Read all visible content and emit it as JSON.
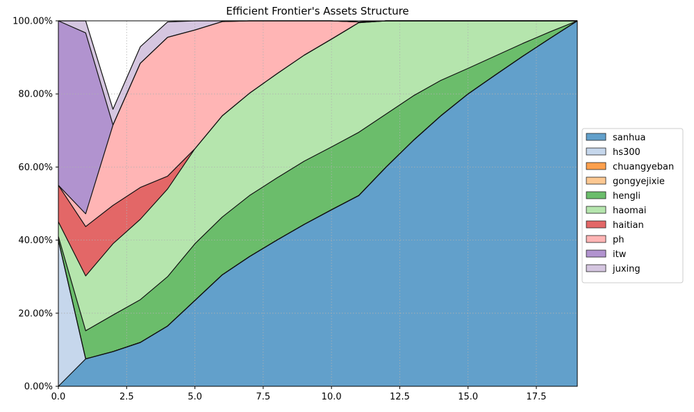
{
  "chart_data": {
    "type": "area",
    "title": "Efficient Frontier's Assets Structure",
    "xlabel": "",
    "ylabel": "",
    "xlim": [
      0,
      19
    ],
    "ylim": [
      0,
      1
    ],
    "x_ticks": [
      0,
      2.5,
      5,
      7.5,
      10,
      12.5,
      15,
      17.5
    ],
    "x_tick_labels": [
      "0.0",
      "2.5",
      "5.0",
      "7.5",
      "10.0",
      "12.5",
      "15.0",
      "17.5"
    ],
    "y_ticks": [
      0,
      0.2,
      0.4,
      0.6,
      0.8,
      1.0
    ],
    "y_tick_labels": [
      "0.00%",
      "20.00%",
      "40.00%",
      "60.00%",
      "80.00%",
      "100.00%"
    ],
    "grid": true,
    "legend_position": "right",
    "x": [
      0,
      1,
      2,
      3,
      4,
      5,
      6,
      7,
      8,
      9,
      10,
      11,
      12,
      13,
      14,
      15,
      16,
      17,
      18,
      19
    ],
    "series": [
      {
        "name": "sanhua",
        "color": "#62a0cb",
        "values": [
          0.0,
          0.075,
          0.095,
          0.12,
          0.165,
          0.235,
          0.305,
          0.355,
          0.4,
          0.443,
          0.483,
          0.522,
          0.6,
          0.673,
          0.74,
          0.8,
          0.852,
          0.903,
          0.952,
          1.0
        ]
      },
      {
        "name": "hs300",
        "color": "#c6d7ec",
        "values": [
          0.4,
          0.0,
          0.0,
          0.0,
          0.0,
          0.0,
          0.0,
          0.0,
          0.0,
          0.0,
          0.0,
          0.0,
          0.0,
          0.0,
          0.0,
          0.0,
          0.0,
          0.0,
          0.0,
          0.0
        ]
      },
      {
        "name": "chuangyeban",
        "color": "#fda04d",
        "values": [
          0,
          0,
          0,
          0,
          0,
          0,
          0,
          0,
          0,
          0,
          0,
          0,
          0,
          0,
          0,
          0,
          0,
          0,
          0,
          0
        ]
      },
      {
        "name": "gongyejixie",
        "color": "#fdc892",
        "values": [
          0,
          0,
          0,
          0,
          0,
          0,
          0,
          0,
          0,
          0,
          0,
          0,
          0,
          0,
          0,
          0,
          0,
          0,
          0,
          0
        ]
      },
      {
        "name": "hengli",
        "color": "#6bbd6b",
        "values": [
          0.01,
          0.077,
          0.1,
          0.117,
          0.135,
          0.155,
          0.158,
          0.167,
          0.17,
          0.173,
          0.172,
          0.173,
          0.145,
          0.122,
          0.097,
          0.07,
          0.052,
          0.035,
          0.018,
          0.0
        ]
      },
      {
        "name": "haomai",
        "color": "#b5e5ad",
        "values": [
          0.04,
          0.15,
          0.195,
          0.22,
          0.24,
          0.26,
          0.277,
          0.28,
          0.285,
          0.29,
          0.295,
          0.3,
          0.255,
          0.205,
          0.163,
          0.13,
          0.096,
          0.062,
          0.03,
          0.0
        ]
      },
      {
        "name": "haitian",
        "color": "#e36767",
        "values": [
          0.1,
          0.135,
          0.105,
          0.087,
          0.035,
          0.0,
          0.0,
          0.0,
          0.0,
          0.0,
          0.0,
          0.0,
          0.0,
          0.0,
          0.0,
          0.0,
          0.0,
          0.0,
          0.0,
          0.0
        ]
      },
      {
        "name": "ph",
        "color": "#ffb5b5",
        "values": [
          0.0,
          0.035,
          0.22,
          0.34,
          0.38,
          0.325,
          0.258,
          0.198,
          0.145,
          0.094,
          0.05,
          0.002,
          0.0,
          0.0,
          0.0,
          0.0,
          0.0,
          0.0,
          0.0,
          0.0
        ]
      },
      {
        "name": "itw",
        "color": "#b193cf",
        "values": [
          0.45,
          0.495,
          0.0,
          0.0,
          0.0,
          0.0,
          0.0,
          0.0,
          0.0,
          0.0,
          0.0,
          0.0,
          0.0,
          0.0,
          0.0,
          0.0,
          0.0,
          0.0,
          0.0,
          0.0
        ]
      },
      {
        "name": "juxing",
        "color": "#d5c6e0",
        "values": [
          0.0,
          0.033,
          0.043,
          0.045,
          0.042,
          0.025,
          0.002,
          0.0,
          0.0,
          0.0,
          0.0,
          0.0,
          0.0,
          0.0,
          0.0,
          0.0,
          0.0,
          0.0,
          0.0,
          0.0
        ]
      }
    ]
  }
}
